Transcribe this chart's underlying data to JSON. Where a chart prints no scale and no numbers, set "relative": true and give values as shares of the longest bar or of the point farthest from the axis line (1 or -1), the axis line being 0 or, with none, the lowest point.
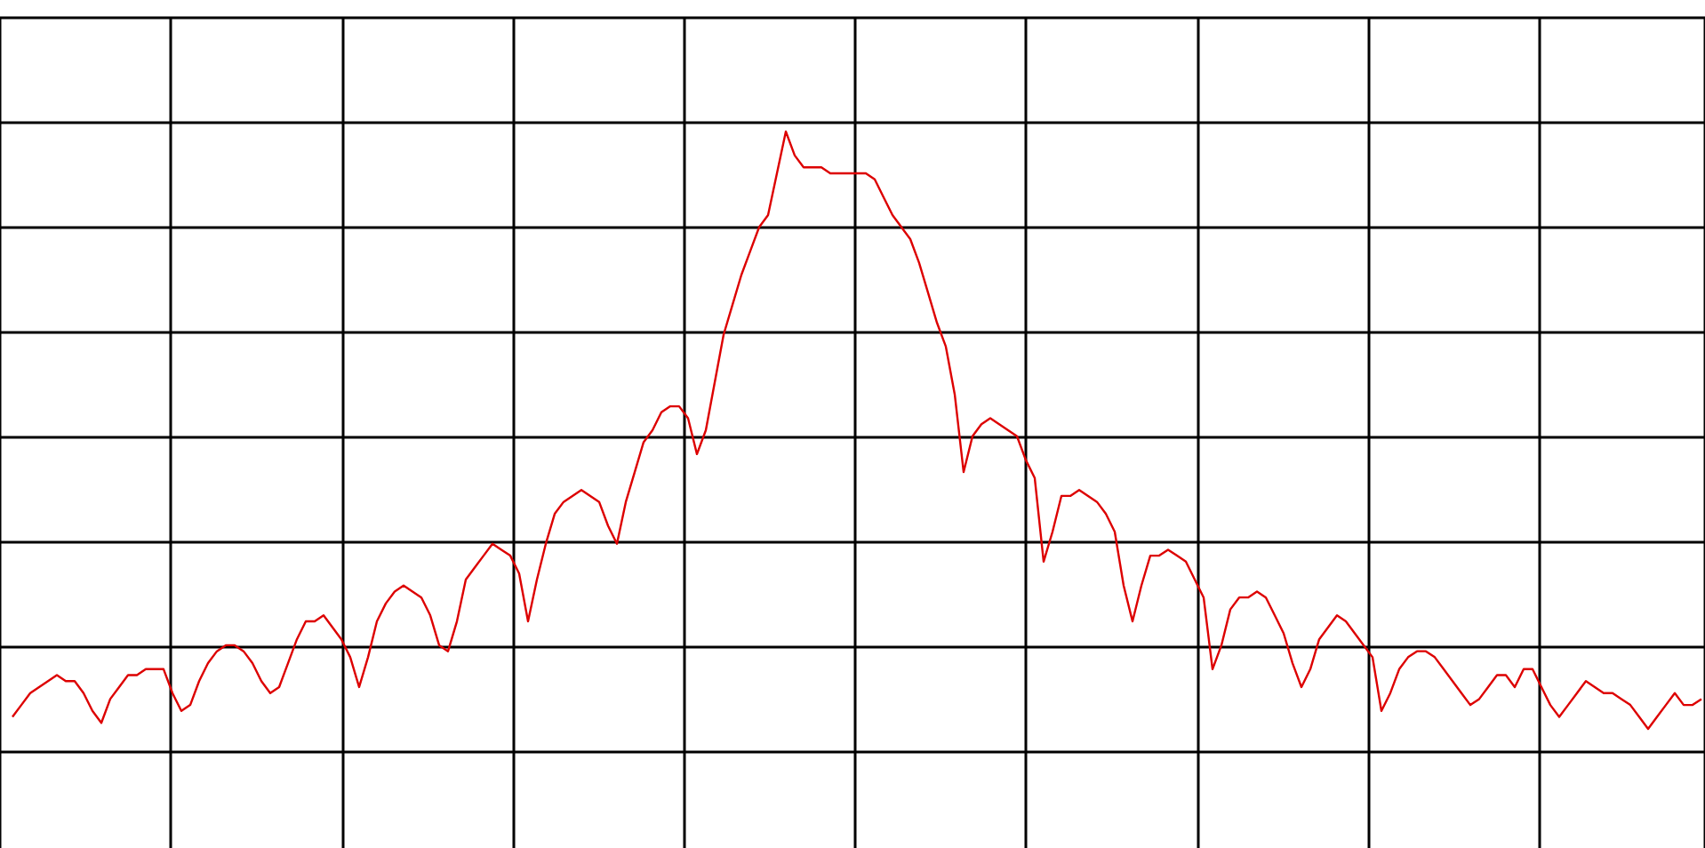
{
  "chart_data": {
    "type": "line",
    "relative": true,
    "grid": true,
    "marker": "none",
    "line_style": "solid",
    "tick_labels": false,
    "categories": [
      null,
      null,
      null,
      null,
      null,
      null,
      null,
      null,
      null,
      null,
      null,
      null,
      null,
      null,
      null,
      null,
      null,
      null,
      null,
      null,
      null,
      null,
      null,
      null,
      null,
      null,
      null,
      null,
      null,
      null,
      null,
      null,
      null,
      null,
      null,
      null,
      null,
      null,
      null,
      null,
      null,
      null,
      null,
      null,
      null,
      null,
      null,
      null,
      null,
      null,
      null,
      null,
      null,
      null,
      null,
      null,
      null,
      null,
      null,
      null,
      null,
      null,
      null,
      null,
      null,
      null,
      null,
      null,
      null,
      null,
      null,
      null,
      null,
      null,
      null,
      null,
      null,
      null,
      null,
      null,
      null,
      null,
      null,
      null,
      null,
      null,
      null,
      null,
      null,
      null,
      null,
      null,
      null,
      null,
      null,
      null,
      null,
      null,
      null,
      null,
      null,
      null,
      null,
      null,
      null,
      null,
      null,
      null,
      null,
      null,
      null,
      null,
      null,
      null,
      null,
      null,
      null,
      null,
      null,
      null,
      null,
      null,
      null,
      null,
      null,
      null,
      null,
      null,
      null,
      null,
      null,
      null,
      null,
      null,
      null,
      null,
      null,
      null,
      null,
      null,
      null,
      null,
      null,
      null,
      null,
      null,
      null,
      null,
      null,
      null,
      null,
      null,
      null,
      null,
      null,
      null,
      null,
      null,
      null,
      null,
      null,
      null,
      null,
      null,
      null,
      null,
      null,
      null,
      null,
      null,
      null,
      null,
      null,
      null,
      null,
      null,
      null,
      null,
      null,
      null,
      null,
      null,
      null,
      null,
      null,
      null,
      null,
      null,
      null,
      null,
      null
    ],
    "series": [
      {
        "color": "#dd0000",
        "values": [
          0.02,
          0.04,
          0.06,
          0.07,
          0.08,
          0.09,
          0.08,
          0.08,
          0.06,
          0.03,
          0.01,
          0.05,
          0.07,
          0.09,
          0.09,
          0.1,
          0.1,
          0.1,
          0.06,
          0.03,
          0.04,
          0.08,
          0.11,
          0.13,
          0.14,
          0.14,
          0.13,
          0.11,
          0.08,
          0.06,
          0.07,
          0.11,
          0.15,
          0.18,
          0.18,
          0.19,
          0.17,
          0.15,
          0.12,
          0.07,
          0.12,
          0.18,
          0.21,
          0.23,
          0.24,
          0.23,
          0.22,
          0.19,
          0.14,
          0.13,
          0.18,
          0.25,
          0.27,
          0.29,
          0.31,
          0.3,
          0.29,
          0.26,
          0.18,
          0.25,
          0.31,
          0.36,
          0.38,
          0.39,
          0.4,
          0.39,
          0.38,
          0.34,
          0.31,
          0.38,
          0.43,
          0.48,
          0.5,
          0.53,
          0.54,
          0.54,
          0.52,
          0.46,
          0.5,
          0.58,
          0.66,
          0.71,
          0.76,
          0.8,
          0.84,
          0.86,
          0.93,
          1.0,
          0.96,
          0.94,
          0.94,
          0.94,
          0.93,
          0.93,
          0.93,
          0.93,
          0.93,
          0.92,
          0.89,
          0.86,
          0.84,
          0.82,
          0.78,
          0.73,
          0.68,
          0.64,
          0.56,
          0.43,
          0.49,
          0.51,
          0.52,
          0.51,
          0.5,
          0.49,
          0.45,
          0.42,
          0.28,
          0.33,
          0.39,
          0.39,
          0.4,
          0.39,
          0.38,
          0.36,
          0.33,
          0.24,
          0.18,
          0.24,
          0.29,
          0.29,
          0.3,
          0.29,
          0.28,
          0.25,
          0.22,
          0.1,
          0.14,
          0.2,
          0.22,
          0.22,
          0.23,
          0.22,
          0.19,
          0.16,
          0.11,
          0.07,
          0.1,
          0.15,
          0.17,
          0.19,
          0.18,
          0.16,
          0.14,
          0.12,
          0.03,
          0.06,
          0.1,
          0.12,
          0.13,
          0.13,
          0.12,
          0.1,
          0.08,
          0.06,
          0.04,
          0.05,
          0.07,
          0.09,
          0.09,
          0.07,
          0.1,
          0.1,
          0.07,
          0.04,
          0.02,
          0.04,
          0.06,
          0.08,
          0.07,
          0.06,
          0.06,
          0.05,
          0.04,
          0.02,
          0.0,
          0.02,
          0.04,
          0.06,
          0.04,
          0.04,
          0.05
        ]
      }
    ]
  }
}
